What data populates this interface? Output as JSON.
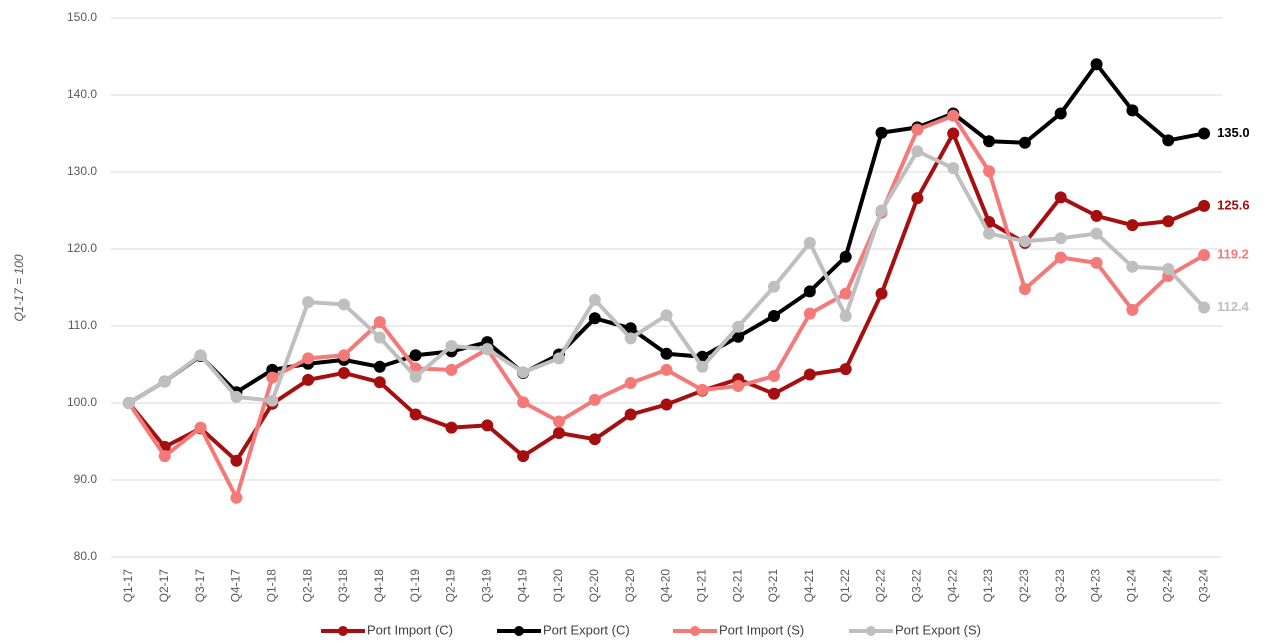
{
  "chart_data": {
    "type": "line",
    "y_label": "Q1-17 = 100",
    "categories": [
      "Q1-17",
      "Q2-17",
      "Q3-17",
      "Q4-17",
      "Q1-18",
      "Q2-18",
      "Q3-18",
      "Q4-18",
      "Q1-19",
      "Q2-19",
      "Q3-19",
      "Q4-19",
      "Q1-20",
      "Q2-20",
      "Q3-20",
      "Q4-20",
      "Q1-21",
      "Q2-21",
      "Q3-21",
      "Q4-21",
      "Q1-22",
      "Q2-22",
      "Q3-22",
      "Q4-22",
      "Q1-23",
      "Q2-23",
      "Q3-23",
      "Q4-23",
      "Q1-24",
      "Q2-24",
      "Q3-24"
    ],
    "series": [
      {
        "name": "Port Import (C)",
        "color": "#a50f0f",
        "values": [
          100,
          94.3,
          96.7,
          92.5,
          99.9,
          103,
          103.9,
          102.7,
          98.5,
          96.8,
          97.1,
          93.1,
          96.1,
          95.3,
          98.5,
          99.8,
          101.6,
          103.1,
          101.2,
          103.7,
          104.4,
          114.2,
          126.6,
          135,
          123.5,
          120.8,
          126.7,
          124.3,
          123.1,
          123.6,
          125.6
        ],
        "value_labels": [
          null,
          null,
          null,
          null,
          null,
          null,
          null,
          null,
          null,
          null,
          null,
          null,
          null,
          null,
          null,
          null,
          null,
          null,
          null,
          null,
          null,
          null,
          null,
          null,
          null,
          null,
          null,
          null,
          null,
          null,
          "125.6"
        ]
      },
      {
        "name": "Port Export (C)",
        "color": "#000000",
        "values": [
          100,
          102.8,
          106.1,
          101.4,
          104.3,
          105.1,
          105.6,
          104.7,
          106.2,
          106.7,
          107.9,
          103.9,
          106.3,
          111,
          109.7,
          106.4,
          106,
          108.6,
          111.3,
          114.5,
          119,
          135.1,
          135.8,
          137.6,
          134,
          133.8,
          137.6,
          144,
          138,
          134.1,
          135
        ],
        "value_labels": [
          null,
          null,
          null,
          null,
          null,
          null,
          null,
          null,
          null,
          null,
          null,
          null,
          null,
          null,
          null,
          null,
          null,
          null,
          null,
          null,
          null,
          null,
          null,
          null,
          null,
          null,
          null,
          null,
          null,
          null,
          "135.0"
        ]
      },
      {
        "name": "Port Import (S)",
        "color": "#f47a7a",
        "values": [
          100,
          93.1,
          96.8,
          87.7,
          103.3,
          105.8,
          106.2,
          110.5,
          104.5,
          104.3,
          107,
          100.1,
          97.6,
          100.4,
          102.6,
          104.3,
          101.7,
          102.2,
          103.5,
          111.6,
          114.2,
          124.7,
          135.5,
          137.3,
          130.1,
          114.8,
          118.9,
          118.2,
          112.1,
          116.5,
          119.2
        ],
        "value_labels": [
          null,
          null,
          null,
          null,
          null,
          null,
          null,
          null,
          null,
          null,
          null,
          null,
          null,
          null,
          null,
          null,
          null,
          null,
          null,
          null,
          null,
          null,
          null,
          null,
          null,
          null,
          null,
          null,
          null,
          null,
          "119.2"
        ]
      },
      {
        "name": "Port Export (S)",
        "color": "#bfbfbf",
        "values": [
          100,
          102.8,
          106.2,
          100.8,
          100.3,
          113.1,
          112.8,
          108.5,
          103.4,
          107.4,
          107,
          104,
          105.8,
          113.4,
          108.4,
          111.4,
          104.7,
          109.9,
          115.1,
          120.8,
          111.3,
          125,
          132.7,
          130.5,
          122,
          121,
          121.4,
          122,
          117.7,
          117.4,
          112.4
        ],
        "value_labels": [
          null,
          null,
          null,
          null,
          null,
          null,
          null,
          null,
          null,
          null,
          null,
          null,
          null,
          null,
          null,
          null,
          null,
          null,
          null,
          null,
          null,
          null,
          null,
          null,
          null,
          null,
          null,
          null,
          null,
          null,
          "112.4"
        ]
      }
    ],
    "ylim": [
      80,
      150
    ],
    "yticks": [
      {
        "value": 80,
        "label": "80.0"
      },
      {
        "value": 90,
        "label": "90.0"
      },
      {
        "value": 100,
        "label": "100.0"
      },
      {
        "value": 110,
        "label": "110.0"
      },
      {
        "value": 120,
        "label": "120.0"
      },
      {
        "value": 130,
        "label": "130.0"
      },
      {
        "value": 140,
        "label": "140.0"
      },
      {
        "value": 150,
        "label": "150.0"
      }
    ],
    "grid": true,
    "legend": "bottom"
  }
}
